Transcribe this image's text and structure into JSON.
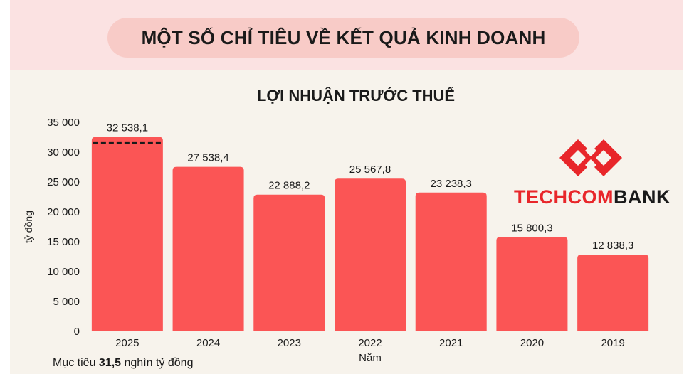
{
  "header": {
    "title": "MỘT SỐ CHỈ TIÊU VỀ KẾT QUẢ KINH DOANH"
  },
  "logo": {
    "part1": "TECHCOM",
    "part2": "BANK",
    "color": "#e8262a"
  },
  "footnote": {
    "prefix": "Mục tiêu ",
    "value": "31,5",
    "suffix": " nghìn tỷ đồng"
  },
  "chart_data": {
    "type": "bar",
    "title": "LỢI NHUẬN TRƯỚC THUẾ",
    "xlabel": "Năm",
    "ylabel": "tỷ đồng",
    "categories": [
      "2025",
      "2024",
      "2023",
      "2022",
      "2021",
      "2020",
      "2019"
    ],
    "values": [
      32538.1,
      27538.4,
      22888.2,
      25567.8,
      23238.3,
      15800.3,
      12838.3
    ],
    "value_labels": [
      "32 538,1",
      "27 538,4",
      "22 888,2",
      "25 567,8",
      "23 238,3",
      "15 800,3",
      "12 838,3"
    ],
    "ylim": [
      0,
      35000
    ],
    "yticks": [
      0,
      5000,
      10000,
      15000,
      20000,
      25000,
      30000,
      35000
    ],
    "ytick_labels": [
      "0",
      "5 000",
      "10 000",
      "15 000",
      "20 000",
      "25 000",
      "30 000",
      "35 000"
    ],
    "target": {
      "value": 31500,
      "category": "2025",
      "style": "dashed"
    },
    "grid": false,
    "bar_color": "#fb5555"
  }
}
